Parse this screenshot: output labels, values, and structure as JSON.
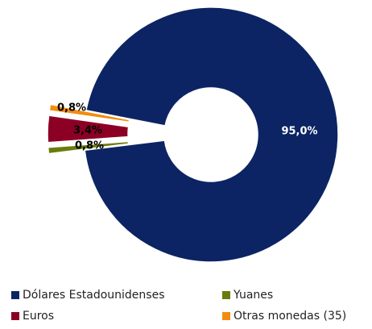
{
  "chart_data": {
    "type": "donut",
    "series": [
      {
        "name": "Dólares Estadounidenses",
        "color": "#0c2463",
        "values": [
          95.0
        ],
        "value_labels": [
          "95,0%"
        ]
      },
      {
        "name": "Yuanes",
        "color": "#6b7b0c",
        "values": [
          0.8
        ],
        "value_labels": [
          "0,8%"
        ]
      },
      {
        "name": "Euros",
        "color": "#8c0026",
        "values": [
          3.4
        ],
        "value_labels": [
          "3,4%"
        ]
      },
      {
        "name": "Otras monedas (35)",
        "color": "#f28c10",
        "values": [
          0.8
        ],
        "value_labels": [
          "0,8%"
        ]
      }
    ]
  }
}
